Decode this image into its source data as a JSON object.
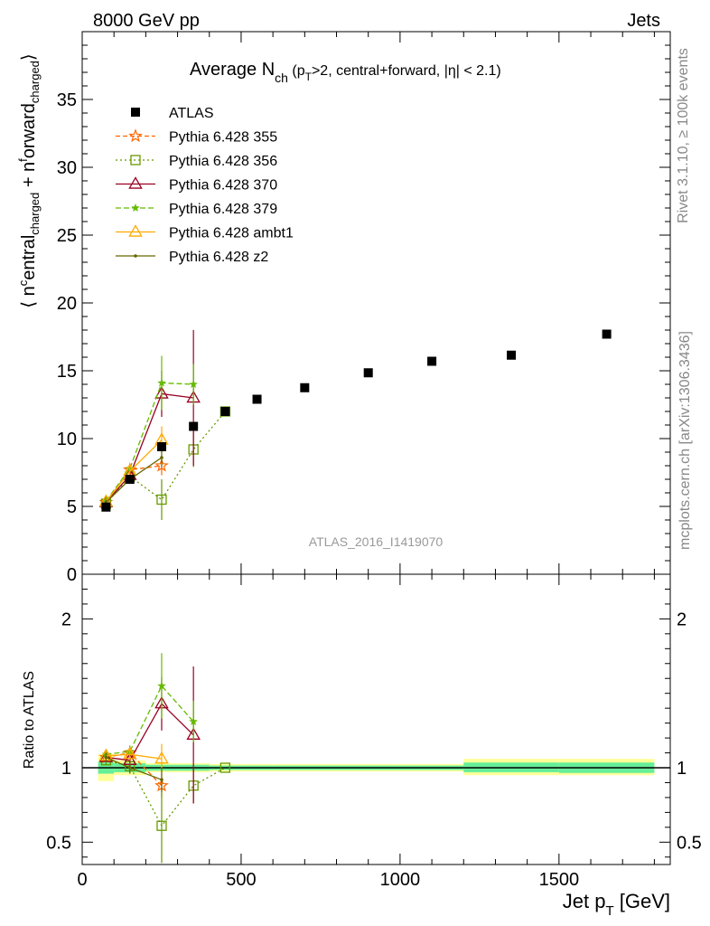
{
  "header": {
    "left": "8000 GeV pp",
    "right": "Jets"
  },
  "side_labels": {
    "rivet": "Rivet 3.1.10, ≥ 100k events",
    "mcplots": "mcplots.cern.ch [arXiv:1306.3436]"
  },
  "chart_data": [
    {
      "type": "scatter",
      "title": {
        "main": "Average N",
        "main_sub": "ch",
        "paren_open": " (p",
        "paren_sub": "T",
        "paren_rest": ">2, central+forward, |η| < 2.1)"
      },
      "ylabel": "⟨ n^c entral_charged + n^f orward_charged ⟩",
      "ylabel_parts": {
        "open": "⟨ n",
        "c": "c",
        "entral": "entral",
        "sub1": "charged",
        "plus": " + n",
        "f": "f",
        "orward": "orward",
        "sub2": "charged",
        "close": "⟩"
      },
      "watermark": "ATLAS_2016_I1419070",
      "xlim": [
        0,
        1850
      ],
      "ylim": [
        0,
        40
      ],
      "yticks": [
        0,
        5,
        10,
        15,
        20,
        25,
        30,
        35
      ],
      "ytick_labels": [
        "0",
        "5",
        "10",
        "15",
        "20",
        "25",
        "30",
        "35"
      ],
      "legend_position": "top-left",
      "series": [
        {
          "name": "ATLAS",
          "color": "#000000",
          "marker": "filled-square",
          "x": [
            75,
            150,
            250,
            350,
            450,
            550,
            700,
            900,
            1100,
            1350,
            1650
          ],
          "y": [
            4.95,
            7.0,
            9.4,
            10.9,
            12.0,
            12.9,
            13.75,
            14.85,
            15.7,
            16.15,
            17.7
          ]
        },
        {
          "name": "Pythia 6.428 355",
          "color": "#ff6600",
          "marker": "open-star",
          "dash": "5,3",
          "x": [
            75,
            150,
            250
          ],
          "y": [
            5.3,
            7.7,
            8.0
          ],
          "err": [
            0.2,
            0.3,
            0.7
          ]
        },
        {
          "name": "Pythia 6.428 356",
          "color": "#669900",
          "marker": "open-square",
          "dash": "2,3",
          "x": [
            75,
            150,
            250,
            350,
            450
          ],
          "y": [
            5.2,
            7.2,
            5.5,
            9.2,
            12.0
          ],
          "err": [
            0.2,
            0.3,
            1.5,
            1.3,
            0.0
          ]
        },
        {
          "name": "Pythia 6.428 370",
          "color": "#990022",
          "marker": "open-triangle",
          "dash": "",
          "x": [
            75,
            150,
            250,
            350
          ],
          "y": [
            5.3,
            7.3,
            13.3,
            13.0
          ],
          "err": [
            0.2,
            0.4,
            1.7,
            5.0
          ]
        },
        {
          "name": "Pythia 6.428 379",
          "color": "#66bb00",
          "marker": "filled-star",
          "dash": "6,3",
          "x": [
            75,
            150,
            250,
            350
          ],
          "y": [
            5.4,
            7.8,
            14.1,
            14.0
          ],
          "err": [
            0.2,
            0.3,
            2.0,
            1.5
          ]
        },
        {
          "name": "Pythia 6.428 ambt1",
          "color": "#ffaa00",
          "marker": "open-triangle",
          "dash": "",
          "x": [
            75,
            150,
            250
          ],
          "y": [
            5.35,
            7.6,
            9.9
          ],
          "err": [
            0.2,
            0.3,
            1.0
          ]
        },
        {
          "name": "Pythia 6.428 z2",
          "color": "#666600",
          "marker": "dot",
          "dash": "",
          "x": [
            75,
            150,
            250
          ],
          "y": [
            5.3,
            7.0,
            8.6
          ],
          "err": [
            0.2,
            0.3,
            0.7
          ]
        }
      ]
    },
    {
      "type": "scatter",
      "ylabel": "Ratio to ATLAS",
      "xlabel_main": "Jet p",
      "xlabel_sub": "T",
      "xlabel_unit": " [GeV]",
      "xlim": [
        0,
        1850
      ],
      "ylim": [
        0.35,
        2.3
      ],
      "xticks": [
        0,
        500,
        1000,
        1500
      ],
      "xtick_labels": [
        "0",
        "500",
        "1000",
        "1500"
      ],
      "yticks": [
        0.5,
        1,
        2
      ],
      "ytick_labels": [
        "0.5",
        "1",
        "2"
      ],
      "bands": [
        {
          "x0": 50,
          "x1": 100,
          "y_in": [
            0.96,
            1.04
          ],
          "y_out": [
            0.91,
            1.09
          ]
        },
        {
          "x0": 100,
          "x1": 200,
          "y_in": [
            0.97,
            1.03
          ],
          "y_out": [
            0.95,
            1.05
          ]
        },
        {
          "x0": 200,
          "x1": 300,
          "y_in": [
            0.98,
            1.02
          ],
          "y_out": [
            0.97,
            1.03
          ]
        },
        {
          "x0": 300,
          "x1": 400,
          "y_in": [
            0.98,
            1.02
          ],
          "y_out": [
            0.97,
            1.03
          ]
        },
        {
          "x0": 400,
          "x1": 500,
          "y_in": [
            0.985,
            1.015
          ],
          "y_out": [
            0.975,
            1.025
          ]
        },
        {
          "x0": 500,
          "x1": 600,
          "y_in": [
            0.985,
            1.015
          ],
          "y_out": [
            0.975,
            1.025
          ]
        },
        {
          "x0": 600,
          "x1": 800,
          "y_in": [
            0.985,
            1.015
          ],
          "y_out": [
            0.975,
            1.025
          ]
        },
        {
          "x0": 800,
          "x1": 1000,
          "y_in": [
            0.985,
            1.015
          ],
          "y_out": [
            0.975,
            1.025
          ]
        },
        {
          "x0": 1000,
          "x1": 1200,
          "y_in": [
            0.985,
            1.015
          ],
          "y_out": [
            0.975,
            1.025
          ]
        },
        {
          "x0": 1200,
          "x1": 1500,
          "y_in": [
            0.97,
            1.035
          ],
          "y_out": [
            0.95,
            1.06
          ]
        },
        {
          "x0": 1500,
          "x1": 1800,
          "y_in": [
            0.965,
            1.035
          ],
          "y_out": [
            0.95,
            1.06
          ]
        }
      ],
      "band_colors": {
        "inner": "#66ee99",
        "outer": "#ffff99"
      },
      "series": [
        {
          "name": "Pythia 6.428 355",
          "x": [
            75,
            150,
            250
          ],
          "y": [
            1.07,
            1.1,
            0.88
          ],
          "err": [
            0.03,
            0.04,
            0.08
          ]
        },
        {
          "name": "Pythia 6.428 356",
          "x": [
            75,
            150,
            250,
            350,
            450
          ],
          "y": [
            1.05,
            1.01,
            0.61,
            0.88,
            1.0
          ],
          "err": [
            0.03,
            0.04,
            0.25,
            0.12,
            0.0
          ]
        },
        {
          "name": "Pythia 6.428 370",
          "x": [
            75,
            150,
            250,
            350
          ],
          "y": [
            1.07,
            1.05,
            1.43,
            1.22
          ],
          "err": [
            0.03,
            0.05,
            0.18,
            0.46
          ]
        },
        {
          "name": "Pythia 6.428 379",
          "x": [
            75,
            150,
            250,
            350
          ],
          "y": [
            1.09,
            1.11,
            1.55,
            1.31
          ],
          "err": [
            0.03,
            0.04,
            0.22,
            0.14
          ]
        },
        {
          "name": "Pythia 6.428 ambt1",
          "x": [
            75,
            150,
            250
          ],
          "y": [
            1.08,
            1.09,
            1.06
          ],
          "err": [
            0.03,
            0.04,
            0.1
          ]
        },
        {
          "name": "Pythia 6.428 z2",
          "x": [
            75,
            150,
            250
          ],
          "y": [
            1.07,
            1.0,
            0.92
          ],
          "err": [
            0.03,
            0.04,
            0.08
          ]
        }
      ],
      "reference_line": 1
    }
  ]
}
